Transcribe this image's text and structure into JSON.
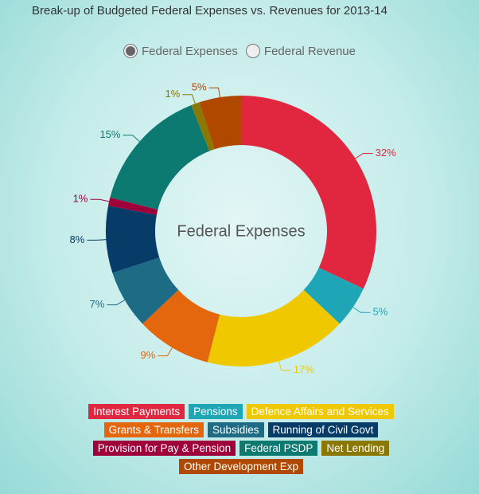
{
  "chart_data": {
    "type": "pie",
    "title": "Break-up of Budgeted Federal Expenses vs. Revenues for 2013-14",
    "options": [
      "Federal Expenses",
      "Federal Revenue"
    ],
    "selected_option": 0,
    "center_label": "Federal Expenses",
    "categories": [
      "Interest Payments",
      "Pensions",
      "Defence Affairs and Services",
      "Grants & Transfers",
      "Subsidies",
      "Running of Civil Govt",
      "Provision for Pay & Pension",
      "Federal PSDP",
      "Net Lending",
      "Other Development Exp"
    ],
    "values": [
      32,
      5,
      17,
      9,
      7,
      8,
      1,
      15,
      1,
      5
    ],
    "value_labels": [
      "32%",
      "5%",
      "17%",
      "9%",
      "7%",
      "8%",
      "1%",
      "15%",
      "1%",
      "5%"
    ],
    "colors": [
      "#e0273f",
      "#1fa6b6",
      "#efc800",
      "#e5670d",
      "#1e6b86",
      "#073c69",
      "#a0003a",
      "#0d7a72",
      "#8a7800",
      "#b04800"
    ]
  }
}
